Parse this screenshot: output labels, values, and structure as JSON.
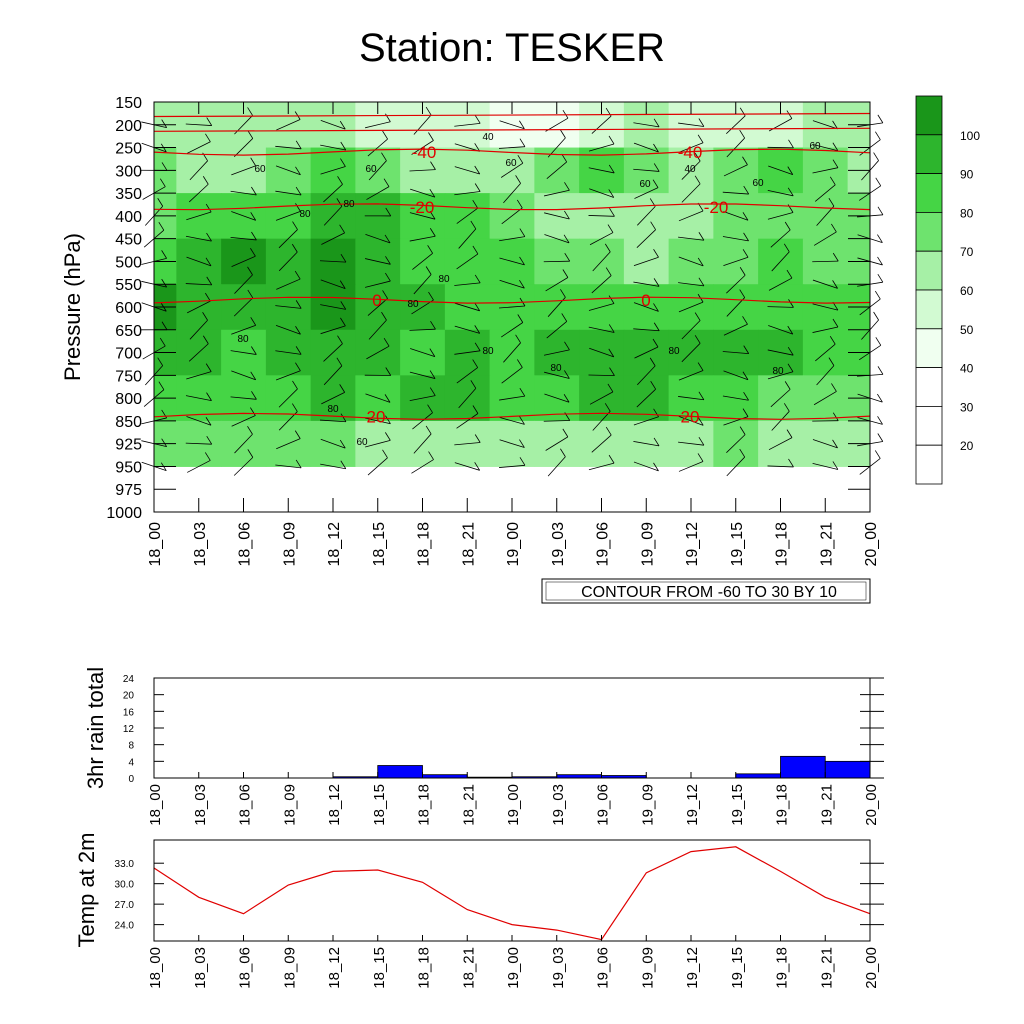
{
  "title": "Station: TESKER",
  "colors": {
    "temperature_contour": "#e00000",
    "rain_bar": "#0000ff",
    "temp2m_line": "#e00000",
    "humidity_shades": [
      "#ffffff",
      "#ffffff",
      "#ffffff",
      "#f0fff0",
      "#d2fad2",
      "#a6f0a6",
      "#6ee36e",
      "#45d545",
      "#2db52d",
      "#1a961a"
    ]
  },
  "chart_data": [
    {
      "type": "heatmap",
      "description_label": "relative humidity shading with temperature contours and wind barbs",
      "ylabel": "Pressure (hPa)",
      "y_ticks": [
        "150",
        "200",
        "250",
        "300",
        "350",
        "400",
        "450",
        "500",
        "550",
        "600",
        "650",
        "700",
        "750",
        "800",
        "850",
        "925",
        "950",
        "975",
        "1000"
      ],
      "x_ticks": [
        "18_00",
        "18_03",
        "18_06",
        "18_09",
        "18_12",
        "18_15",
        "18_18",
        "18_21",
        "19_00",
        "19_03",
        "19_06",
        "19_09",
        "19_12",
        "19_15",
        "19_18",
        "19_21",
        "20_00"
      ],
      "info_box": "CONTOUR FROM -60 TO 30 BY 10",
      "colorbar": {
        "levels": [
          "20",
          "30",
          "40",
          "50",
          "60",
          "70",
          "80",
          "90",
          "100"
        ]
      },
      "humidity_grid": [
        [
          55,
          50,
          52,
          55,
          50,
          48,
          45,
          40,
          35,
          38,
          45,
          50,
          45,
          40,
          48,
          55,
          55
        ],
        [
          60,
          58,
          55,
          62,
          70,
          62,
          58,
          55,
          58,
          60,
          70,
          60,
          55,
          62,
          72,
          60,
          55
        ],
        [
          68,
          72,
          75,
          78,
          85,
          80,
          72,
          70,
          62,
          58,
          58,
          55,
          58,
          62,
          65,
          62,
          60
        ],
        [
          78,
          88,
          90,
          88,
          92,
          80,
          75,
          72,
          70,
          62,
          60,
          58,
          62,
          68,
          70,
          68,
          65
        ],
        [
          90,
          88,
          88,
          85,
          90,
          82,
          80,
          78,
          75,
          72,
          70,
          72,
          75,
          75,
          78,
          75,
          72
        ],
        [
          82,
          80,
          78,
          80,
          85,
          80,
          78,
          80,
          78,
          80,
          82,
          82,
          85,
          88,
          82,
          78,
          75
        ],
        [
          70,
          72,
          75,
          78,
          80,
          76,
          80,
          80,
          78,
          78,
          80,
          82,
          78,
          72,
          65,
          65,
          62
        ],
        [
          60,
          62,
          65,
          62,
          60,
          58,
          58,
          56,
          55,
          58,
          58,
          55,
          58,
          60,
          56,
          55,
          55
        ]
      ],
      "temperature_contours": [
        {
          "label": "-40",
          "values": [
            -44,
            -44,
            -43,
            -43,
            -42,
            -42,
            -41,
            -41,
            -41,
            -41,
            -41,
            -41,
            -41,
            -41,
            -41,
            -41,
            -41
          ]
        },
        {
          "label": "-20",
          "values": [
            -21,
            -21,
            -20,
            -20,
            -20,
            -20,
            -20,
            -20,
            -20,
            -20,
            -20,
            -20,
            -20,
            -20,
            -20,
            -20,
            -20
          ]
        },
        {
          "label": "0",
          "values": [
            0,
            0,
            0,
            0,
            0,
            0,
            0,
            0,
            0,
            0,
            0,
            0,
            0,
            0,
            0,
            0,
            0
          ]
        },
        {
          "label": "20",
          "values": [
            20,
            20,
            20,
            20,
            20,
            20,
            20,
            20,
            20,
            20,
            20,
            20,
            20,
            20,
            20,
            20,
            20
          ]
        }
      ],
      "contour_labels_shown": [
        "-40",
        "-40",
        "-20",
        "-20",
        "0",
        "0",
        "20",
        "20"
      ],
      "humidity_labels_shown": [
        "40",
        "40",
        "60",
        "60",
        "60",
        "60",
        "60",
        "60",
        "60",
        "80",
        "80",
        "80",
        "80",
        "80",
        "80",
        "80",
        "80",
        "80",
        "80"
      ]
    },
    {
      "type": "bar",
      "ylabel": "3hr rain total",
      "y_ticks": [
        "0",
        "4",
        "8",
        "12",
        "16",
        "20",
        "24"
      ],
      "ylim": [
        0,
        24
      ],
      "x_ticks": [
        "18_00",
        "18_03",
        "18_06",
        "18_09",
        "18_12",
        "18_15",
        "18_18",
        "18_21",
        "19_00",
        "19_03",
        "19_06",
        "19_09",
        "19_12",
        "19_15",
        "19_18",
        "19_21",
        "20_00"
      ],
      "values": [
        0,
        0,
        0,
        0,
        0.3,
        3.0,
        0.8,
        0.2,
        0.3,
        0.8,
        0.6,
        0,
        0,
        1.0,
        5.2,
        4.0
      ]
    },
    {
      "type": "line",
      "ylabel": "Temp at 2m",
      "y_ticks": [
        "24.0",
        "27.0",
        "30.0",
        "33.0"
      ],
      "ylim": [
        21.6,
        36.4
      ],
      "x_ticks": [
        "18_00",
        "18_03",
        "18_06",
        "18_09",
        "18_12",
        "18_15",
        "18_18",
        "18_21",
        "19_00",
        "19_03",
        "19_06",
        "19_09",
        "19_12",
        "19_15",
        "19_18",
        "19_21",
        "20_00"
      ],
      "values": [
        32.3,
        28.0,
        25.6,
        29.8,
        31.8,
        32.0,
        30.2,
        26.2,
        24.0,
        23.2,
        21.8,
        31.6,
        34.7,
        35.4,
        31.8,
        28.0,
        25.6
      ]
    }
  ]
}
